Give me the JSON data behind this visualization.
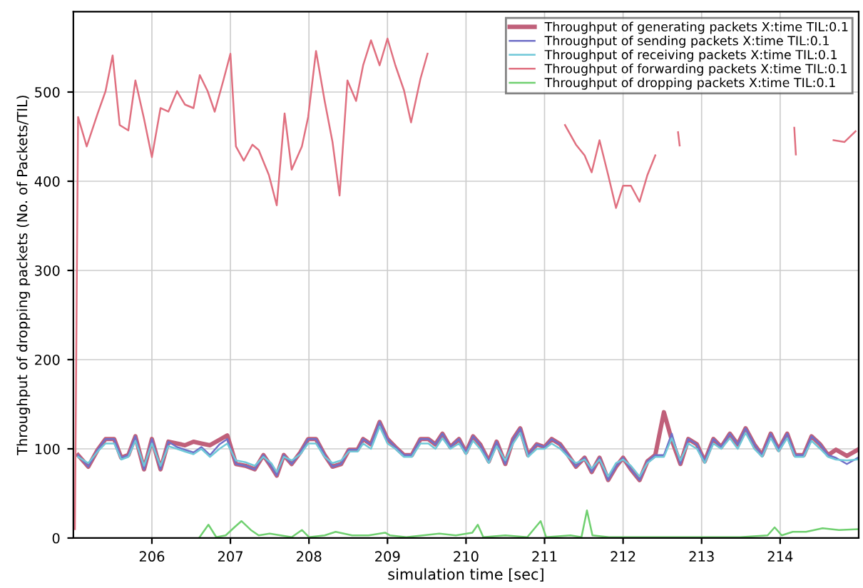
{
  "chart_data": {
    "type": "line",
    "xlabel": "simulation time [sec]",
    "ylabel": "Throughput of dropping packets (No. of Packets/TIL)",
    "x": [
      205.06,
      205.19,
      205.31,
      205.41,
      205.52,
      205.61,
      205.7,
      205.79,
      205.9,
      206.0,
      206.11,
      206.21,
      206.32,
      206.42,
      206.53,
      206.63,
      206.74,
      206.86,
      206.96,
      207.07,
      207.19,
      207.31,
      207.42,
      207.52,
      207.59,
      207.68,
      207.78,
      207.89,
      207.99,
      208.09,
      208.2,
      208.3,
      208.41,
      208.51,
      208.62,
      208.69,
      208.79,
      208.9,
      209.0,
      209.1,
      209.21,
      209.31,
      209.42,
      209.52,
      209.61,
      209.7,
      209.8,
      209.91,
      210.0,
      210.09,
      210.18,
      210.29,
      210.39,
      210.5,
      210.6,
      210.69,
      210.79,
      210.9,
      211.0,
      211.09,
      211.2,
      211.3,
      211.4,
      211.51,
      211.6,
      211.7,
      211.81,
      211.91,
      212.0,
      212.1,
      212.21,
      212.31,
      212.41,
      212.52,
      212.62,
      212.73,
      212.83,
      212.94,
      213.04,
      213.15,
      213.25,
      213.36,
      213.46,
      213.56,
      213.67,
      213.77,
      213.88,
      213.98,
      214.09,
      214.19,
      214.3,
      214.4,
      214.51,
      214.61,
      214.71,
      214.85,
      214.99
    ],
    "series": [
      {
        "name": "Throughput of generating packets X:time TIL:0.1",
        "color": "#c0607a",
        "values": [
          93,
          80,
          99,
          111,
          111,
          90,
          93,
          114,
          77,
          111,
          77,
          108,
          106,
          104,
          108,
          106,
          104,
          110,
          115,
          83,
          81,
          77,
          93,
          80,
          70,
          93,
          83,
          96,
          111,
          111,
          93,
          80,
          83,
          99,
          99,
          111,
          105,
          130,
          111,
          102,
          93,
          93,
          111,
          111,
          105,
          117,
          102,
          111,
          96,
          114,
          105,
          86,
          108,
          83,
          111,
          123,
          93,
          105,
          102,
          111,
          105,
          93,
          80,
          90,
          74,
          90,
          65,
          80,
          90,
          77,
          65,
          86,
          93,
          141,
          110,
          83,
          111,
          105,
          86,
          111,
          102,
          117,
          105,
          123,
          105,
          93,
          117,
          99,
          117,
          93,
          93,
          114,
          105,
          93,
          99,
          92,
          99
        ]
      },
      {
        "name": "Throughput of sending packets X:time TIL:0.1",
        "color": "#7070c8",
        "values": [
          93,
          80,
          99,
          111,
          111,
          90,
          93,
          114,
          77,
          111,
          77,
          108,
          102,
          99,
          96,
          102,
          93,
          105,
          111,
          83,
          81,
          77,
          93,
          80,
          70,
          93,
          83,
          96,
          111,
          111,
          93,
          80,
          83,
          99,
          99,
          111,
          105,
          130,
          111,
          102,
          93,
          93,
          111,
          111,
          105,
          117,
          102,
          111,
          96,
          114,
          105,
          86,
          108,
          83,
          111,
          123,
          93,
          105,
          102,
          111,
          105,
          93,
          80,
          90,
          74,
          90,
          65,
          80,
          90,
          77,
          65,
          86,
          93,
          93,
          117,
          83,
          111,
          105,
          86,
          111,
          102,
          117,
          105,
          123,
          105,
          93,
          117,
          99,
          117,
          93,
          93,
          114,
          105,
          93,
          90,
          83,
          90
        ]
      },
      {
        "name": "Throughput of receiving packets X:time TIL:0.1",
        "color": "#70c8d8",
        "values": [
          91,
          84,
          97,
          106,
          106,
          88,
          91,
          109,
          81,
          106,
          81,
          103,
          100,
          97,
          94,
          100,
          91,
          100,
          106,
          87,
          85,
          81,
          91,
          84,
          74,
          91,
          87,
          94,
          106,
          106,
          91,
          84,
          87,
          97,
          97,
          106,
          100,
          125,
          106,
          100,
          91,
          91,
          106,
          106,
          100,
          112,
          100,
          106,
          94,
          109,
          100,
          84,
          103,
          87,
          106,
          118,
          91,
          100,
          100,
          106,
          100,
          91,
          84,
          88,
          78,
          88,
          69,
          84,
          88,
          81,
          69,
          84,
          91,
          91,
          112,
          87,
          106,
          100,
          84,
          106,
          100,
          112,
          100,
          118,
          100,
          91,
          112,
          97,
          112,
          91,
          91,
          109,
          100,
          91,
          88,
          87,
          88
        ]
      },
      {
        "name": "Throughput of forwarding packets X:time TIL:0.1",
        "color": "#e07080",
        "x": [
          205.02,
          205.06,
          205.17,
          205.31,
          205.41,
          205.5,
          205.59,
          205.7,
          205.79,
          205.9,
          206.0,
          206.11,
          206.21,
          206.32,
          206.42,
          206.53,
          206.61,
          206.71,
          206.8,
          206.91,
          207.0,
          207.07,
          207.17,
          207.28,
          207.36,
          207.49,
          207.59,
          207.69,
          207.78,
          207.91,
          207.99,
          208.09,
          208.2,
          208.3,
          208.39,
          208.49,
          208.6,
          208.69,
          208.79,
          208.9,
          209.0,
          209.1,
          209.21,
          209.3,
          209.42,
          209.51,
          209.8,
          211.26,
          211.4,
          211.51,
          211.6,
          211.7,
          211.81,
          211.91,
          212.0,
          212.1,
          212.21,
          212.31,
          212.41,
          212.6,
          212.7,
          212.72,
          213.5,
          214.18,
          214.2,
          214.5,
          214.68,
          214.82,
          214.96
        ],
        "values": [
          10,
          472,
          439,
          476,
          501,
          541,
          463,
          457,
          513,
          470,
          427,
          482,
          478,
          501,
          486,
          482,
          519,
          501,
          478,
          513,
          543,
          439,
          423,
          441,
          435,
          407,
          373,
          476,
          413,
          439,
          472,
          546,
          490,
          444,
          384,
          513,
          490,
          530,
          558,
          530,
          560,
          530,
          502,
          466,
          515,
          543,
          null,
          463,
          441,
          429,
          410,
          446,
          407,
          370,
          395,
          395,
          377,
          407,
          429,
          null,
          455,
          440,
          null,
          460,
          430,
          null,
          446,
          444,
          456
        ]
      },
      {
        "name": "Throughput of dropping packets X:time TIL:0.1",
        "color": "#70d070",
        "x": [
          206.6,
          206.72,
          206.82,
          206.94,
          207.05,
          207.14,
          207.26,
          207.36,
          207.5,
          207.64,
          207.78,
          207.91,
          208.0,
          208.2,
          208.34,
          208.55,
          208.76,
          208.97,
          209.03,
          209.24,
          209.45,
          209.66,
          209.87,
          210.08,
          210.15,
          210.22,
          210.5,
          210.78,
          210.95,
          211.02,
          211.33,
          211.47,
          211.54,
          211.61,
          211.82,
          212.1,
          212.45,
          212.8,
          213.15,
          213.49,
          213.84,
          213.93,
          214.02,
          214.16,
          214.33,
          214.54,
          214.75,
          214.99
        ],
        "values": [
          0,
          15,
          1,
          3,
          12,
          19,
          9,
          3,
          5,
          3,
          1,
          9,
          1,
          3,
          7,
          3,
          3,
          6,
          3,
          1,
          3,
          5,
          3,
          6,
          15,
          1,
          3,
          1,
          19,
          1,
          3,
          1,
          31,
          3,
          1,
          1,
          1,
          1,
          1,
          1,
          3,
          12,
          3,
          7,
          7,
          11,
          9,
          10
        ]
      }
    ],
    "xlim": [
      205,
      215
    ],
    "xticks": [
      206,
      207,
      208,
      209,
      210,
      211,
      212,
      213,
      214
    ],
    "ylim": [
      0,
      590
    ],
    "yticks": [
      0,
      100,
      200,
      300,
      400,
      500
    ],
    "grid": true,
    "legend": "top right",
    "marker": "none",
    "line_style": "solid"
  }
}
